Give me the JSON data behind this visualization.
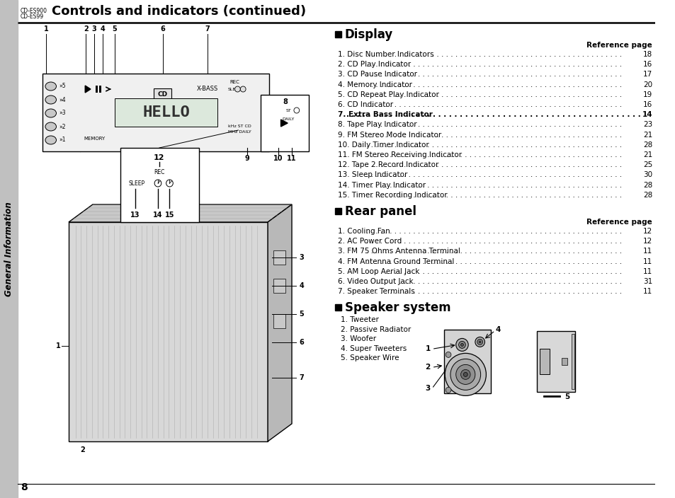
{
  "title": "Controls and indicators (continued)",
  "model_lines": [
    "CD-ES900",
    "CD-ES99"
  ],
  "page_number": "8",
  "sidebar_text": "General Information",
  "bg_color": "#ffffff",
  "display_section_title": "Display",
  "display_ref_label": "Reference page",
  "display_items": [
    {
      "num": "1",
      "text": "Disc Number Indicators",
      "page": "18"
    },
    {
      "num": "2",
      "text": "CD Play Indicator",
      "page": "16"
    },
    {
      "num": "3",
      "text": "CD Pause Indicator",
      "page": "17"
    },
    {
      "num": "4",
      "text": "Memory Indicator",
      "page": "20"
    },
    {
      "num": "5",
      "text": "CD Repeat Play Indicator",
      "page": "19"
    },
    {
      "num": "6",
      "text": "CD Indicator",
      "page": "16"
    },
    {
      "num": "7",
      "text": "Extra Bass Indicator",
      "page": "14"
    },
    {
      "num": "8",
      "text": "Tape Play Indicator",
      "page": "23"
    },
    {
      "num": "9",
      "text": "FM Stereo Mode Indicator",
      "page": "21"
    },
    {
      "num": "10",
      "text": "Daily Timer Indicator",
      "page": "28"
    },
    {
      "num": "11",
      "text": "FM Stereo Receiving Indicator",
      "page": "21"
    },
    {
      "num": "12",
      "text": "Tape 2 Record Indicator",
      "page": "25"
    },
    {
      "num": "13",
      "text": "Sleep Indicator",
      "page": "30"
    },
    {
      "num": "14",
      "text": "Timer Play Indicator",
      "page": "28"
    },
    {
      "num": "15",
      "text": "Timer Recording Indicator",
      "page": "28"
    }
  ],
  "rear_section_title": "Rear panel",
  "rear_ref_label": "Reference page",
  "rear_items": [
    {
      "num": "1",
      "text": "Cooling Fan",
      "page": "12"
    },
    {
      "num": "2",
      "text": "AC Power Cord",
      "page": "12"
    },
    {
      "num": "3",
      "text": "FM 75 Ohms Antenna Terminal",
      "page": "11"
    },
    {
      "num": "4",
      "text": "FM Antenna Ground Terminal",
      "page": "11"
    },
    {
      "num": "5",
      "text": "AM Loop Aerial Jack",
      "page": "11"
    },
    {
      "num": "6",
      "text": "Video Output Jack",
      "page": "31"
    },
    {
      "num": "7",
      "text": "Speaker Terminals",
      "page": "11"
    }
  ],
  "speaker_section_title": "Speaker system",
  "speaker_items": [
    "1. Tweeter",
    "2. Passive Radiator",
    "3. Woofer",
    "4. Super Tweeters",
    "5. Speaker Wire"
  ]
}
